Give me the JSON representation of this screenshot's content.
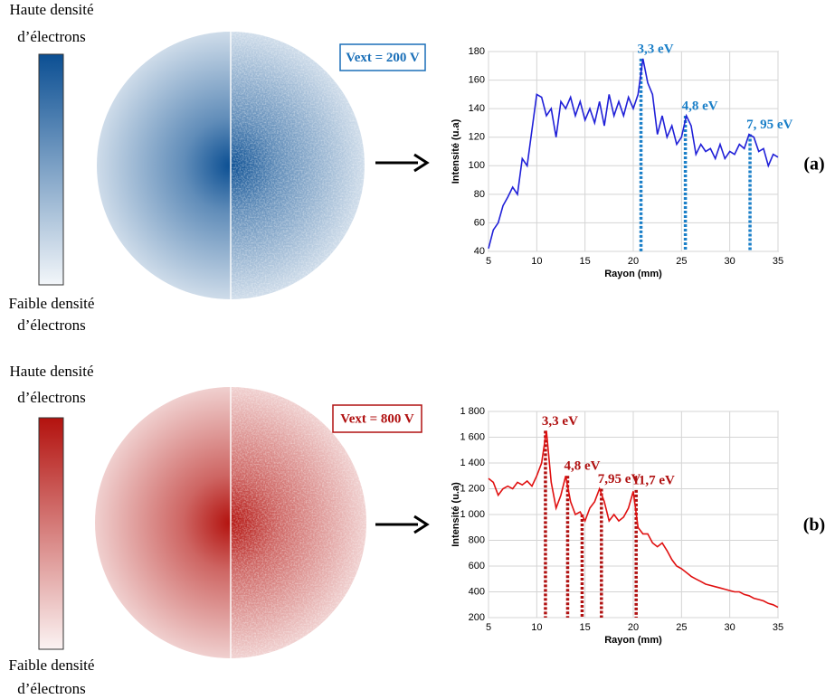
{
  "panels": [
    {
      "label": "(a)",
      "density_high": [
        "Haute densité",
        "d’électrons"
      ],
      "density_low": [
        "Faible densité",
        "d’électrons"
      ],
      "voltage": "Vext = 200 V",
      "image_color": "#0b4f93",
      "voltage_color": "#1a6fb8"
    },
    {
      "label": "(b)",
      "density_high": [
        "Haute densité",
        "d’électrons"
      ],
      "density_low": [
        "Faible densité",
        "d’électrons"
      ],
      "voltage": "Vext = 800 V",
      "image_color": "#b3120e",
      "voltage_color": "#b01010"
    }
  ],
  "chart_data": [
    {
      "type": "line",
      "x_label": "Rayon (mm)",
      "y_label": "Intensité (u.a)",
      "x": [
        5,
        5.5,
        6,
        6.5,
        7,
        7.5,
        8,
        8.5,
        9,
        9.5,
        10,
        10.5,
        11,
        11.5,
        12,
        12.5,
        13,
        13.5,
        14,
        14.5,
        15,
        15.5,
        16,
        16.5,
        17,
        17.5,
        18,
        18.5,
        19,
        19.5,
        20,
        20.5,
        21,
        21.5,
        22,
        22.5,
        23,
        23.5,
        24,
        24.5,
        25,
        25.5,
        26,
        26.5,
        27,
        27.5,
        28,
        28.5,
        29,
        29.5,
        30,
        30.5,
        31,
        31.5,
        32,
        32.5,
        33,
        33.5,
        34,
        34.5,
        35
      ],
      "series": [
        {
          "color": "#2020d8",
          "values": [
            42,
            55,
            60,
            72,
            78,
            85,
            80,
            105,
            100,
            125,
            150,
            148,
            135,
            140,
            120,
            145,
            140,
            148,
            135,
            145,
            132,
            140,
            130,
            145,
            128,
            150,
            135,
            145,
            135,
            148,
            140,
            150,
            175,
            158,
            150,
            122,
            135,
            120,
            128,
            115,
            120,
            135,
            128,
            108,
            115,
            110,
            112,
            105,
            115,
            105,
            110,
            108,
            115,
            112,
            122,
            120,
            110,
            112,
            100,
            108,
            106
          ]
        }
      ],
      "xlim": [
        5,
        35
      ],
      "ylim": [
        40,
        180
      ],
      "xticks": [
        5,
        10,
        15,
        20,
        25,
        30,
        35
      ],
      "yticks": [
        40,
        60,
        80,
        100,
        120,
        140,
        160,
        180
      ],
      "grid": true,
      "annotations": [
        {
          "x": 20.8,
          "y": 175,
          "label": "3,3 eV"
        },
        {
          "x": 25.4,
          "y": 135,
          "label": "4,8 eV"
        },
        {
          "x": 32.1,
          "y": 122,
          "label": "7, 95 eV"
        }
      ],
      "annotation_color": "#1a7fc8"
    },
    {
      "type": "line",
      "x_label": "Rayon (mm)",
      "y_label": "Intensité (u.a)",
      "x": [
        5,
        5.5,
        6,
        6.5,
        7,
        7.5,
        8,
        8.5,
        9,
        9.5,
        10,
        10.5,
        11,
        11.5,
        12,
        12.5,
        13,
        13.5,
        14,
        14.5,
        15,
        15.5,
        16,
        16.5,
        17,
        17.5,
        18,
        18.5,
        19,
        19.5,
        20,
        20.5,
        21,
        21.5,
        22,
        22.5,
        23,
        23.5,
        24,
        24.5,
        25,
        25.5,
        26,
        26.5,
        27,
        27.5,
        28,
        28.5,
        29,
        29.5,
        30,
        30.5,
        31,
        31.5,
        32,
        32.5,
        33,
        33.5,
        34,
        34.5,
        35
      ],
      "series": [
        {
          "color": "#e01010",
          "values": [
            1280,
            1250,
            1150,
            1200,
            1220,
            1200,
            1250,
            1230,
            1260,
            1220,
            1300,
            1400,
            1650,
            1250,
            1050,
            1150,
            1300,
            1100,
            1000,
            1020,
            950,
            1050,
            1100,
            1200,
            1100,
            950,
            1000,
            950,
            980,
            1050,
            1180,
            900,
            850,
            850,
            780,
            750,
            780,
            720,
            650,
            600,
            580,
            550,
            520,
            500,
            480,
            460,
            450,
            440,
            430,
            420,
            410,
            400,
            400,
            380,
            370,
            350,
            340,
            330,
            310,
            300,
            280
          ]
        }
      ],
      "xlim": [
        5,
        35
      ],
      "ylim": [
        200,
        1800
      ],
      "xticks": [
        5,
        10,
        15,
        20,
        25,
        30,
        35
      ],
      "yticks": [
        200,
        400,
        600,
        800,
        {
          "value": 1000,
          "label": "1 000"
        },
        {
          "value": 1200,
          "label": "1 200"
        },
        {
          "value": 1400,
          "label": "1 400"
        },
        {
          "value": 1600,
          "label": "1 600"
        },
        {
          "value": 1800,
          "label": "1 800"
        }
      ],
      "grid": true,
      "annotations": [
        {
          "x": 10.9,
          "y": 1650,
          "label": "3,3 eV"
        },
        {
          "x": 13.2,
          "y": 1300,
          "label": "4,8 eV"
        },
        {
          "x": 14.7,
          "y": 1000,
          "label": null
        },
        {
          "x": 16.7,
          "y": 1200,
          "label": "7,95 eV"
        },
        {
          "x": 20.3,
          "y": 1190,
          "label": "11,7 eV"
        }
      ],
      "annotation_color": "#b01010"
    }
  ]
}
